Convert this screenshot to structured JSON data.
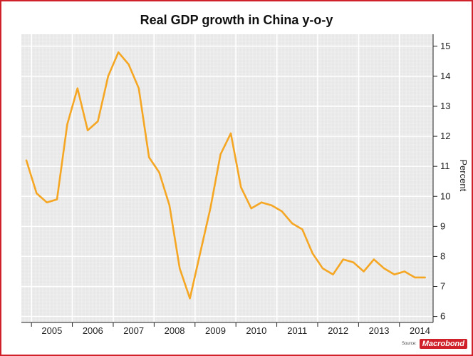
{
  "chart_data": {
    "type": "line",
    "title": "Real GDP growth in China y-o-y",
    "ylabel": "Percent",
    "xlabel": "",
    "ylim": [
      5.8,
      15.4
    ],
    "yticks": [
      6,
      7,
      8,
      9,
      10,
      11,
      12,
      13,
      14,
      15
    ],
    "year_labels": [
      "2005",
      "2006",
      "2007",
      "2008",
      "2009",
      "2010",
      "2011",
      "2012",
      "2013",
      "2014"
    ],
    "x_start_quarter": "2004 Q4",
    "series": [
      {
        "color": "#f5a623",
        "values": [
          11.2,
          10.1,
          9.8,
          9.9,
          12.4,
          13.6,
          12.2,
          12.5,
          14.0,
          14.8,
          14.4,
          13.6,
          11.3,
          10.8,
          9.7,
          7.6,
          6.6,
          8.1,
          9.6,
          11.4,
          12.1,
          10.3,
          9.6,
          9.8,
          9.7,
          9.5,
          9.1,
          8.9,
          8.1,
          7.6,
          7.4,
          7.9,
          7.8,
          7.5,
          7.9,
          7.6,
          7.4,
          7.5,
          7.3,
          7.3
        ]
      }
    ],
    "grid": true,
    "y_axis_side": "right"
  },
  "source": {
    "label": "Source:",
    "brand": "Macrobond"
  },
  "colors": {
    "frame": "#d0202a",
    "line": "#f5a623",
    "plot_bg": "#e8e8e8",
    "grid": "#ffffff"
  }
}
